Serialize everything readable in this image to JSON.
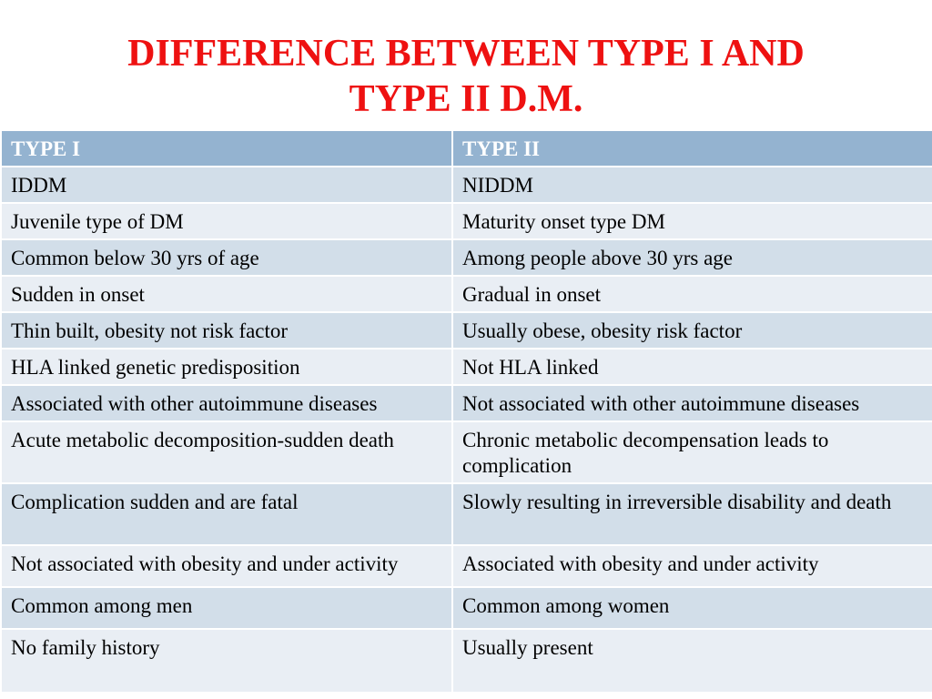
{
  "title": {
    "line1": "DIFFERENCE BETWEEN TYPE I AND",
    "line2": "TYPE II D.M."
  },
  "table": {
    "headers": [
      "TYPE  I",
      "TYPE II"
    ],
    "rows": [
      [
        "IDDM",
        "NIDDM"
      ],
      [
        "Juvenile type of DM",
        "Maturity onset type DM"
      ],
      [
        "Common below 30 yrs of age",
        "Among people above 30 yrs age"
      ],
      [
        "Sudden in onset",
        "Gradual in onset"
      ],
      [
        "Thin built, obesity not risk factor",
        "Usually obese, obesity risk factor"
      ],
      [
        "HLA linked genetic predisposition",
        "Not HLA linked"
      ],
      [
        "Associated with other autoimmune diseases",
        "Not associated with other autoimmune diseases"
      ],
      [
        "Acute metabolic decomposition-sudden death",
        "Chronic metabolic decompensation leads to complication"
      ],
      [
        "Complication sudden and are fatal",
        "Slowly resulting in irreversible disability and death"
      ],
      [
        "Not associated with obesity and under activity",
        "Associated with obesity and under activity"
      ],
      [
        "Common among men",
        "Common among women"
      ],
      [
        "No family history",
        "Usually present"
      ]
    ]
  },
  "colors": {
    "title": "#ee1111",
    "header_bg": "#94b3d0",
    "row_dark": "#d2dee9",
    "row_light": "#e9eef4"
  }
}
